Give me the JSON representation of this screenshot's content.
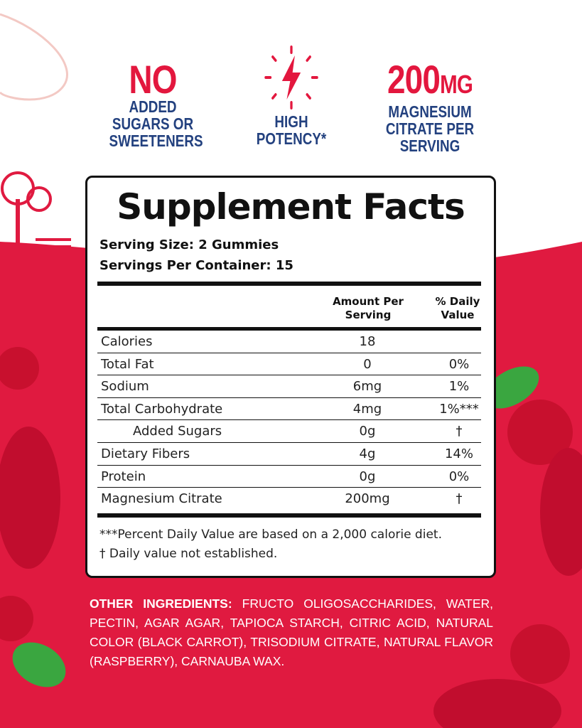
{
  "badges": [
    {
      "big": "NO",
      "lines": [
        "ADDED",
        "SUGARS OR",
        "SWEETENERS"
      ]
    },
    {
      "icon": "lightning-bolt-icon",
      "lines": [
        "HIGH",
        "POTENCY*"
      ]
    },
    {
      "big": "200",
      "unit": "MG",
      "lines": [
        "MAGNESIUM",
        "CITRATE PER",
        "SERVING"
      ]
    }
  ],
  "facts": {
    "title": "Supplement Facts",
    "serving_size": "Serving Size: 2 Gummies",
    "servings_per_container": "Servings Per Container: 15",
    "col_amount": "Amount Per Serving",
    "col_dv": "% Daily Value",
    "rows": [
      {
        "name": "Calories",
        "amount": "18",
        "dv": ""
      },
      {
        "name": "Total Fat",
        "amount": "0",
        "dv": "0%"
      },
      {
        "name": "Sodium",
        "amount": "6mg",
        "dv": "1%"
      },
      {
        "name": "Total Carbohydrate",
        "amount": "4mg",
        "dv": "1%***"
      },
      {
        "name": "Added Sugars",
        "amount": "0g",
        "dv": "†"
      },
      {
        "name": "Dietary Fibers",
        "amount": "4g",
        "dv": "14%"
      },
      {
        "name": "Protein",
        "amount": "0g",
        "dv": "0%"
      },
      {
        "name": "Magnesium Citrate",
        "amount": "200mg",
        "dv": "†"
      }
    ],
    "footnote1": "***Percent Daily Value  are based on a 2,000 calorie diet.",
    "footnote2": "† Daily value not established."
  },
  "ingredients": {
    "label": "OTHER INGREDIENTS:",
    "text": "FRUCTO OLIGOSACCHARIDES, WATER, PECTIN, AGAR AGAR, TAPIOCA STARCH, CITRIC ACID, NATURAL COLOR (BLACK CARROT), TRISODIUM CITRATE, NATURAL FLAVOR (RASPBERRY), CARNAUBA WAX."
  },
  "colors": {
    "red": "#e3173e",
    "navy": "#23417f"
  }
}
